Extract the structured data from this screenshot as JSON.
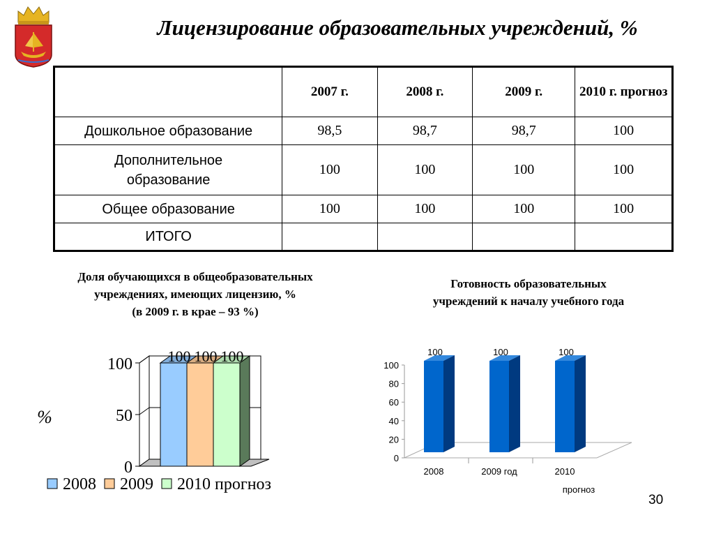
{
  "title": "Лицензирование образовательных учреждений, %",
  "table": {
    "headers": [
      "",
      "2007 г.",
      "2008 г.",
      "2009 г.",
      "2010 г. прогноз"
    ],
    "rows": [
      {
        "label": "Дошкольное образование",
        "cells": [
          "98,5",
          "98,7",
          "98,7",
          "100"
        ]
      },
      {
        "label": "Дополнительное образование",
        "cells": [
          "100",
          "100",
          "100",
          "100"
        ]
      },
      {
        "label": "Общее образование",
        "cells": [
          "100",
          "100",
          "100",
          "100"
        ]
      },
      {
        "label": "ИТОГО",
        "cells": [
          "",
          "",
          "",
          ""
        ]
      }
    ]
  },
  "chart_data": [
    {
      "type": "bar",
      "title_lines": [
        "Доля обучающихся в общеобразовательных",
        "учреждениях, имеющих лицензию, %",
        "(в 2009 г. в крае – 93 %)"
      ],
      "ylabel": "%",
      "ylim": [
        0,
        100
      ],
      "yticks": [
        "0",
        "50",
        "100"
      ],
      "grid": true,
      "legend": "bottom",
      "series": [
        {
          "name": "2008",
          "values": [
            100
          ],
          "label": "100",
          "color": "#99ccff"
        },
        {
          "name": "2009",
          "values": [
            100
          ],
          "label": "100",
          "color": "#ffcc99"
        },
        {
          "name": "2010 прогноз",
          "values": [
            100
          ],
          "label": "100",
          "color": "#ccffcc"
        }
      ]
    },
    {
      "type": "bar",
      "title_lines": [
        "Готовность образовательных",
        "учреждений к началу учебного года"
      ],
      "categories": [
        "2008",
        "2009 год",
        "2010 прогноз"
      ],
      "values": [
        100,
        100,
        100
      ],
      "data_labels": [
        "100",
        "100",
        "100"
      ],
      "ylim": [
        0,
        100
      ],
      "yticks": [
        "0",
        "20",
        "40",
        "60",
        "80",
        "100"
      ],
      "grid": false,
      "bar_color": "#0066cc"
    }
  ],
  "page_number": "30",
  "icons": {
    "emblem": "coat-of-arms-icon"
  }
}
